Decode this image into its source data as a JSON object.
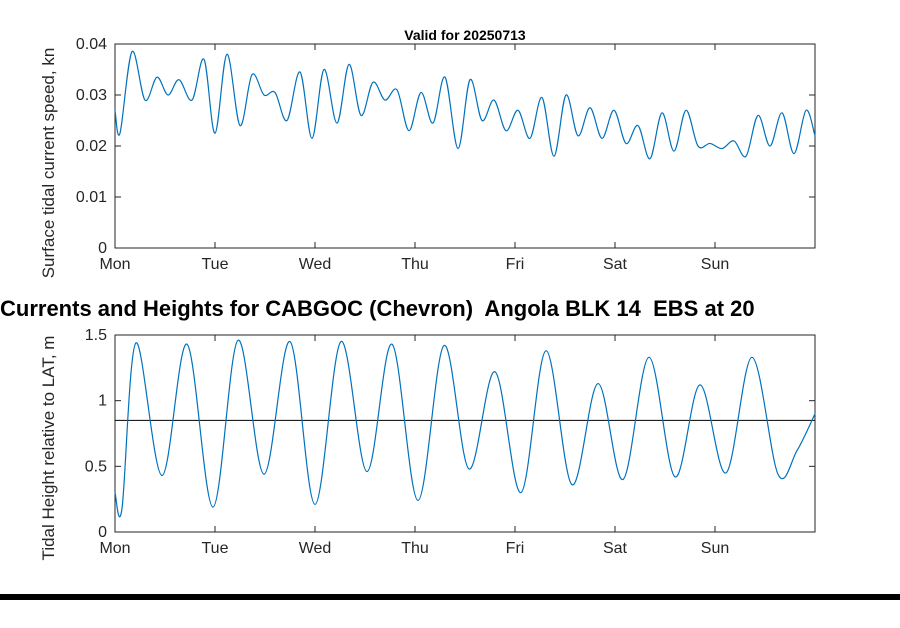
{
  "figure_title": {
    "text": "Currents and Heights for CABGOC (Chevron)  Angola BLK 14  EBS at 20"
  },
  "chart_data": [
    {
      "type": "line",
      "id": "surface-current-speed",
      "title": "Valid for 20250713",
      "ylabel": "Surface tidal current speed, kn",
      "xlabel": "",
      "xlim": [
        0,
        7
      ],
      "ylim": [
        0,
        0.04
      ],
      "x_ticks": [
        0,
        1,
        2,
        3,
        4,
        5,
        6
      ],
      "x_tick_labels": [
        "Mon",
        "Tue",
        "Wed",
        "Thu",
        "Fri",
        "Sat",
        "Sun"
      ],
      "y_ticks": [
        0,
        0.01,
        0.02,
        0.03,
        0.04
      ],
      "y_tick_labels": [
        "0",
        "0.01",
        "0.02",
        "0.03",
        "0.04"
      ],
      "grid": false,
      "legend": null,
      "line_color": "#0072BD",
      "series": [
        {
          "name": "Surface tidal current speed",
          "points": [
            [
              0.0,
              0.027
            ],
            [
              0.05,
              0.0225
            ],
            [
              0.17,
              0.0385
            ],
            [
              0.3,
              0.029
            ],
            [
              0.42,
              0.0335
            ],
            [
              0.53,
              0.03
            ],
            [
              0.64,
              0.033
            ],
            [
              0.77,
              0.029
            ],
            [
              0.89,
              0.037
            ],
            [
              1.0,
              0.0225
            ],
            [
              1.12,
              0.038
            ],
            [
              1.25,
              0.024
            ],
            [
              1.37,
              0.034
            ],
            [
              1.49,
              0.03
            ],
            [
              1.6,
              0.0305
            ],
            [
              1.72,
              0.025
            ],
            [
              1.85,
              0.0345
            ],
            [
              1.97,
              0.0215
            ],
            [
              2.09,
              0.035
            ],
            [
              2.22,
              0.0245
            ],
            [
              2.34,
              0.036
            ],
            [
              2.46,
              0.026
            ],
            [
              2.58,
              0.0325
            ],
            [
              2.7,
              0.029
            ],
            [
              2.82,
              0.031
            ],
            [
              2.94,
              0.023
            ],
            [
              3.06,
              0.0305
            ],
            [
              3.18,
              0.0245
            ],
            [
              3.3,
              0.0335
            ],
            [
              3.43,
              0.0195
            ],
            [
              3.55,
              0.033
            ],
            [
              3.67,
              0.025
            ],
            [
              3.79,
              0.029
            ],
            [
              3.91,
              0.023
            ],
            [
              4.03,
              0.027
            ],
            [
              4.15,
              0.0215
            ],
            [
              4.27,
              0.0295
            ],
            [
              4.39,
              0.018
            ],
            [
              4.51,
              0.03
            ],
            [
              4.63,
              0.022
            ],
            [
              4.75,
              0.0275
            ],
            [
              4.87,
              0.0215
            ],
            [
              4.99,
              0.027
            ],
            [
              5.11,
              0.0205
            ],
            [
              5.23,
              0.024
            ],
            [
              5.35,
              0.0175
            ],
            [
              5.47,
              0.0265
            ],
            [
              5.59,
              0.019
            ],
            [
              5.71,
              0.027
            ],
            [
              5.83,
              0.02
            ],
            [
              5.95,
              0.0205
            ],
            [
              6.07,
              0.0195
            ],
            [
              6.19,
              0.021
            ],
            [
              6.31,
              0.018
            ],
            [
              6.43,
              0.026
            ],
            [
              6.55,
              0.02
            ],
            [
              6.67,
              0.0265
            ],
            [
              6.79,
              0.0185
            ],
            [
              6.91,
              0.027
            ],
            [
              7.0,
              0.022
            ]
          ]
        }
      ]
    },
    {
      "type": "line",
      "id": "tidal-height",
      "title": "",
      "ylabel": "Tidal Height relative to LAT, m",
      "xlabel": "",
      "xlim": [
        0,
        7
      ],
      "ylim": [
        0,
        1.5
      ],
      "x_ticks": [
        0,
        1,
        2,
        3,
        4,
        5,
        6
      ],
      "x_tick_labels": [
        "Mon",
        "Tue",
        "Wed",
        "Thu",
        "Fri",
        "Sat",
        "Sun"
      ],
      "y_ticks": [
        0,
        0.5,
        1,
        1.5
      ],
      "y_tick_labels": [
        "0",
        "0.5",
        "1",
        "1.5"
      ],
      "grid": false,
      "legend": null,
      "line_color": "#0072BD",
      "reference_line_y": 0.85,
      "series": [
        {
          "name": "Tidal height",
          "points": [
            [
              0.0,
              0.3
            ],
            [
              0.07,
              0.18
            ],
            [
              0.21,
              1.44
            ],
            [
              0.47,
              0.43
            ],
            [
              0.72,
              1.43
            ],
            [
              0.98,
              0.19
            ],
            [
              1.23,
              1.46
            ],
            [
              1.49,
              0.44
            ],
            [
              1.75,
              1.45
            ],
            [
              2.0,
              0.21
            ],
            [
              2.26,
              1.45
            ],
            [
              2.52,
              0.46
            ],
            [
              2.77,
              1.43
            ],
            [
              3.03,
              0.24
            ],
            [
              3.29,
              1.42
            ],
            [
              3.54,
              0.48
            ],
            [
              3.8,
              1.22
            ],
            [
              4.06,
              0.3
            ],
            [
              4.31,
              1.38
            ],
            [
              4.57,
              0.36
            ],
            [
              4.83,
              1.13
            ],
            [
              5.08,
              0.4
            ],
            [
              5.34,
              1.33
            ],
            [
              5.6,
              0.42
            ],
            [
              5.85,
              1.12
            ],
            [
              6.11,
              0.45
            ],
            [
              6.37,
              1.33
            ],
            [
              6.63,
              0.44
            ],
            [
              6.82,
              0.62
            ],
            [
              7.0,
              0.9
            ]
          ]
        }
      ]
    }
  ]
}
